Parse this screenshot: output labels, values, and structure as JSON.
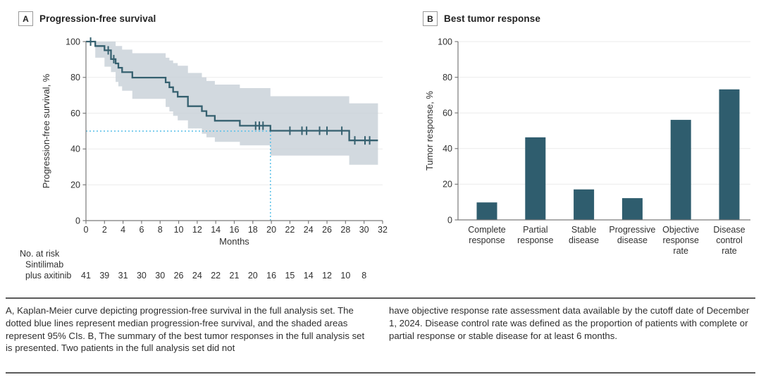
{
  "colors": {
    "curve": "#35606f",
    "ci_band": "#c7d0d7",
    "median_dotted": "#56bfe8",
    "bar": "#2f5d6e",
    "grid": "#ebebeb",
    "axis": "#7a7a7a",
    "text": "#303030",
    "rule": "#5c5c5c"
  },
  "panel_a": {
    "label": "A",
    "title": "Progression-free survival"
  },
  "panel_b": {
    "label": "B",
    "title": "Best tumor response"
  },
  "caption": {
    "left": "A, Kaplan-Meier curve depicting progression-free survival in the full analysis set. The dotted blue lines represent median progression-free survival, and the shaded areas represent 95% CIs. B, The summary of the best tumor responses in the full analysis set is presented. Two patients in the full analysis set did not",
    "right": "have objective response rate assessment data available by the cutoff date of December 1, 2024. Disease control rate was defined as the proportion of patients with complete or partial response or stable disease for at least 6 months."
  },
  "chart_data": [
    {
      "type": "line",
      "subtype": "kaplan-meier",
      "panel": "A",
      "title": "Progression-free survival",
      "xlabel": "Months",
      "ylabel": "Progression-free survival, %",
      "xlim": [
        0,
        32
      ],
      "ylim": [
        0,
        100
      ],
      "xticks": [
        0,
        2,
        4,
        6,
        8,
        10,
        12,
        14,
        16,
        18,
        20,
        22,
        24,
        26,
        28,
        30,
        32
      ],
      "yticks": [
        0,
        20,
        40,
        60,
        80,
        100
      ],
      "grid": "horizontal",
      "series": [
        {
          "name": "Sintilimab plus axitinib",
          "steps": [
            [
              0,
              100
            ],
            [
              1.0,
              97.5
            ],
            [
              2.0,
              95.1
            ],
            [
              2.7,
              90.2
            ],
            [
              3.2,
              87.8
            ],
            [
              3.5,
              85.4
            ],
            [
              3.9,
              82.9
            ],
            [
              5.0,
              79.9
            ],
            [
              8.6,
              77.2
            ],
            [
              9.0,
              74.5
            ],
            [
              9.4,
              71.9
            ],
            [
              9.9,
              69.2
            ],
            [
              11.0,
              63.9
            ],
            [
              12.5,
              61.2
            ],
            [
              13.0,
              58.5
            ],
            [
              13.9,
              55.8
            ],
            [
              16.6,
              53.0
            ],
            [
              19.9,
              50.2
            ],
            [
              28.4,
              44.8
            ]
          ],
          "end_time": 31.5
        }
      ],
      "censors": [
        [
          0.5,
          100
        ],
        [
          2.4,
          95.1
        ],
        [
          3.0,
          90.2
        ],
        [
          18.3,
          53.0
        ],
        [
          18.7,
          53.0
        ],
        [
          19.1,
          53.0
        ],
        [
          22.0,
          50.2
        ],
        [
          23.3,
          50.2
        ],
        [
          23.8,
          50.2
        ],
        [
          25.2,
          50.2
        ],
        [
          26.0,
          50.2
        ],
        [
          27.6,
          50.2
        ],
        [
          29.0,
          44.8
        ],
        [
          30.1,
          44.8
        ],
        [
          30.6,
          44.8
        ]
      ],
      "ci_upper": [
        [
          1.0,
          100
        ],
        [
          3.2,
          97.5
        ],
        [
          3.9,
          95.5
        ],
        [
          5.0,
          93.5
        ],
        [
          8.6,
          91.0
        ],
        [
          9.0,
          89.5
        ],
        [
          9.4,
          88.0
        ],
        [
          9.9,
          86.5
        ],
        [
          11.0,
          82.5
        ],
        [
          12.5,
          80.0
        ],
        [
          13.0,
          78.0
        ],
        [
          13.9,
          76.0
        ],
        [
          16.6,
          74.0
        ],
        [
          19.9,
          69.5
        ],
        [
          28.4,
          65.5
        ]
      ],
      "ci_lower": [
        [
          1.0,
          91.0
        ],
        [
          2.0,
          86.0
        ],
        [
          2.7,
          83.0
        ],
        [
          3.2,
          77.5
        ],
        [
          3.5,
          75.0
        ],
        [
          3.9,
          72.5
        ],
        [
          5.0,
          68.0
        ],
        [
          8.6,
          63.5
        ],
        [
          9.0,
          61.0
        ],
        [
          9.4,
          58.5
        ],
        [
          9.9,
          56.0
        ],
        [
          11.0,
          51.5
        ],
        [
          12.5,
          48.5
        ],
        [
          13.0,
          46.5
        ],
        [
          13.9,
          44.0
        ],
        [
          16.6,
          42.0
        ],
        [
          19.9,
          36.3
        ],
        [
          28.4,
          31.2
        ]
      ],
      "median_lines": {
        "x": 19.9,
        "y": 50
      },
      "at_risk": {
        "header": "No. at risk",
        "group_lines": [
          "Sintilimab",
          "plus axitinib"
        ],
        "times": [
          0,
          2,
          4,
          6,
          8,
          10,
          12,
          14,
          16,
          18,
          20,
          22,
          24,
          26,
          28,
          30
        ],
        "values": [
          41,
          39,
          31,
          30,
          30,
          26,
          24,
          22,
          21,
          20,
          16,
          15,
          14,
          12,
          10,
          8
        ]
      }
    },
    {
      "type": "bar",
      "panel": "B",
      "title": "Best tumor response",
      "xlabel": "",
      "ylabel": "Tumor response, %",
      "ylim": [
        0,
        100
      ],
      "yticks": [
        0,
        20,
        40,
        60,
        80,
        100
      ],
      "grid": "horizontal",
      "categories": [
        [
          "Complete",
          "response"
        ],
        [
          "Partial",
          "response"
        ],
        [
          "Stable",
          "disease"
        ],
        [
          "Progressive",
          "disease"
        ],
        [
          "Objective",
          "response",
          "rate"
        ],
        [
          "Disease",
          "control",
          "rate"
        ]
      ],
      "values": [
        9.8,
        46.3,
        17.1,
        12.2,
        56.1,
        73.2
      ]
    }
  ]
}
